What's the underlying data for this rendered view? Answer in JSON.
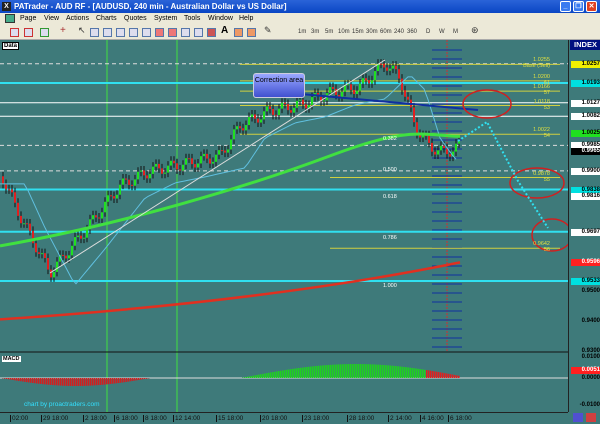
{
  "window": {
    "title": "PATrader - AUD RF - [AUDUSD, 240 min - Australian Dollar vs US Dollar]",
    "minimize": "_",
    "restore": "❐",
    "close": "✕"
  },
  "menu": [
    "Page",
    "View",
    "Actions",
    "Charts",
    "Quotes",
    "System",
    "Tools",
    "Window",
    "Help"
  ],
  "timeframes": [
    "1m",
    "3m",
    "5m",
    "10m",
    "15m",
    "30m",
    "60m",
    "240",
    "360",
    "D",
    "W",
    "M"
  ],
  "pane": {
    "data_label": "Data",
    "macd_label": "MACD",
    "watermark": "chart by proactraders.com",
    "callout": "Correction area"
  },
  "axis": {
    "header": "INDEX",
    "labels": [
      {
        "v": "1.0257",
        "bg": "#f0f000"
      },
      {
        "v": "1.0193",
        "bg": "#00e0e0"
      },
      {
        "v": "1.0127",
        "bg": "#ffffff"
      },
      {
        "v": "1.0082",
        "bg": "#ffffff"
      },
      {
        "v": "1.0025",
        "bg": "#20e020"
      },
      {
        "v": "0.9985",
        "bg": "#ffffff"
      },
      {
        "v": "0.9965",
        "bg": "#000000"
      },
      {
        "v": "0.9900",
        "bg": "#ffffff"
      },
      {
        "v": "0.9838",
        "bg": "#00e0e0"
      },
      {
        "v": "0.9816",
        "bg": "#ffffff"
      },
      {
        "v": "0.9697",
        "bg": "#ffffff"
      },
      {
        "v": "0.9596",
        "bg": "#ff2020"
      },
      {
        "v": "0.9533",
        "bg": "#00e0e0"
      },
      {
        "v": "0.9500",
        "bg": ""
      },
      {
        "v": "0.9400",
        "bg": ""
      },
      {
        "v": "0.9300",
        "bg": ""
      }
    ],
    "macd_labels": [
      {
        "v": "0.0100",
        "bg": ""
      },
      {
        "v": "0.0051",
        "bg": "#ff2020"
      },
      {
        "v": "0.0000",
        "bg": ""
      },
      {
        "v": "-0.0100",
        "bg": ""
      }
    ]
  },
  "levels": [
    {
      "t": "1.0255",
      "s": "Base (Sell)"
    },
    {
      "t": "1.0200",
      "s": "61"
    },
    {
      "t": "1.0166",
      "s": "57"
    },
    {
      "t": "1.0118",
      "s": "53"
    },
    {
      "t": "1.0022",
      "s": "54"
    },
    {
      "t": "0.9878",
      "s": "55"
    },
    {
      "t": "0.9642",
      "s": "56"
    }
  ],
  "fib": [
    "0.382",
    "0.500",
    "0.618",
    "0.786",
    "1.000"
  ],
  "time_labels": [
    "02:00",
    "29 18:00",
    "2 18:00",
    "6 18:00",
    "8 18:00",
    "12 14:00",
    "15 18:00",
    "20 18:00",
    "23 18:00",
    "28 18:00",
    "2 14:00",
    "4 16:00",
    "6 18:00"
  ]
}
